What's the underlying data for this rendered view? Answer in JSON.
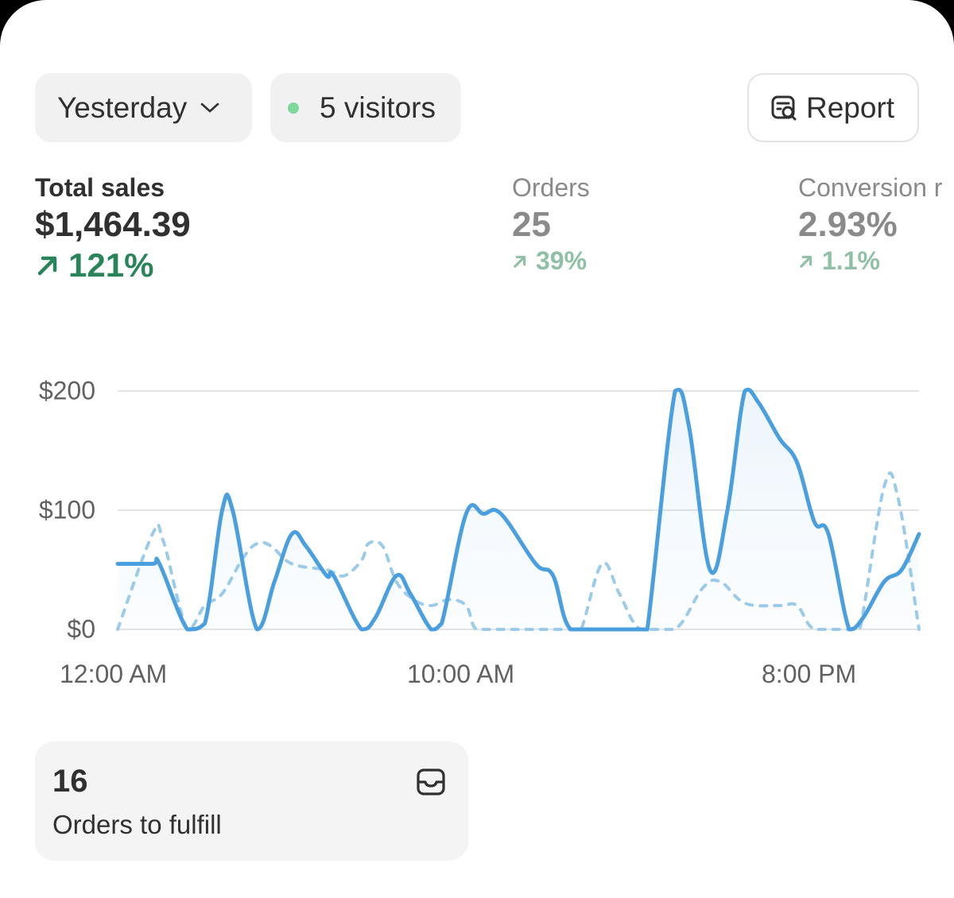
{
  "filters": {
    "date_label": "Yesterday",
    "visitors_label": "5 visitors",
    "visitors_dot_color": "#7bd99a",
    "report_label": "Report"
  },
  "metrics": [
    {
      "label": "Total sales",
      "value": "$1,464.39",
      "change": "121%",
      "direction": "up",
      "color": "#29845a"
    },
    {
      "label": "Orders",
      "value": "25",
      "change": "39%",
      "direction": "up",
      "color": "#8fbfa4"
    },
    {
      "label": "Conversion r",
      "value": "2.93%",
      "change": "1.1%",
      "direction": "up",
      "color": "#8fbfa4"
    }
  ],
  "chart_data": {
    "type": "line",
    "ylim": [
      0,
      200
    ],
    "y_ticks": [
      "$0",
      "$100",
      "$200"
    ],
    "x_tick_labels": [
      "12:00 AM",
      "10:00 AM",
      "8:00 PM"
    ],
    "x_range_hours": [
      0,
      23
    ],
    "grid": true,
    "series": [
      {
        "style": "solid",
        "color": "#4a9fe0",
        "points": [
          [
            0,
            55
          ],
          [
            1,
            55
          ],
          [
            1.2,
            55
          ],
          [
            2,
            0
          ],
          [
            2.5,
            5
          ],
          [
            3,
            100
          ],
          [
            3.3,
            100
          ],
          [
            4,
            0
          ],
          [
            4.5,
            40
          ],
          [
            5,
            80
          ],
          [
            5.4,
            70
          ],
          [
            6,
            45
          ],
          [
            6.2,
            45
          ],
          [
            7,
            0
          ],
          [
            7.4,
            10
          ],
          [
            8,
            45
          ],
          [
            8.4,
            30
          ],
          [
            9,
            0
          ],
          [
            9.3,
            5
          ],
          [
            10,
            97
          ],
          [
            10.5,
            97
          ],
          [
            11,
            97
          ],
          [
            12,
            55
          ],
          [
            12.5,
            45
          ],
          [
            13,
            0
          ],
          [
            14,
            0
          ],
          [
            15,
            0
          ],
          [
            15.2,
            0
          ],
          [
            16,
            200
          ],
          [
            16.4,
            170
          ],
          [
            17,
            50
          ],
          [
            17.5,
            100
          ],
          [
            18,
            200
          ],
          [
            18.4,
            190
          ],
          [
            19,
            160
          ],
          [
            19.5,
            140
          ],
          [
            20,
            90
          ],
          [
            20.4,
            80
          ],
          [
            21,
            0
          ],
          [
            21.4,
            10
          ],
          [
            22,
            40
          ],
          [
            22.5,
            50
          ],
          [
            23,
            80
          ]
        ]
      },
      {
        "style": "dashed",
        "color": "#9ccbe9",
        "points": [
          [
            0,
            0
          ],
          [
            1,
            80
          ],
          [
            1.3,
            75
          ],
          [
            2,
            0
          ],
          [
            2.5,
            20
          ],
          [
            3,
            30
          ],
          [
            3.6,
            60
          ],
          [
            4,
            72
          ],
          [
            4.4,
            70
          ],
          [
            5,
            55
          ],
          [
            6,
            50
          ],
          [
            6.5,
            45
          ],
          [
            7,
            58
          ],
          [
            7.2,
            72
          ],
          [
            7.6,
            70
          ],
          [
            8,
            40
          ],
          [
            8.5,
            25
          ],
          [
            9,
            20
          ],
          [
            9.5,
            25
          ],
          [
            10,
            20
          ],
          [
            10.3,
            0
          ],
          [
            11,
            0
          ],
          [
            12,
            0
          ],
          [
            13,
            0
          ],
          [
            13.3,
            0
          ],
          [
            13.9,
            55
          ],
          [
            14.4,
            30
          ],
          [
            15,
            0
          ],
          [
            16,
            0
          ],
          [
            16.8,
            35
          ],
          [
            17.3,
            40
          ],
          [
            18,
            22
          ],
          [
            19,
            20
          ],
          [
            19.5,
            20
          ],
          [
            20,
            0
          ],
          [
            21,
            0
          ],
          [
            21.3,
            0
          ],
          [
            22,
            120
          ],
          [
            22.4,
            110
          ],
          [
            23,
            0
          ]
        ]
      }
    ]
  },
  "fulfill_card": {
    "count": "16",
    "label": "Orders to fulfill"
  }
}
